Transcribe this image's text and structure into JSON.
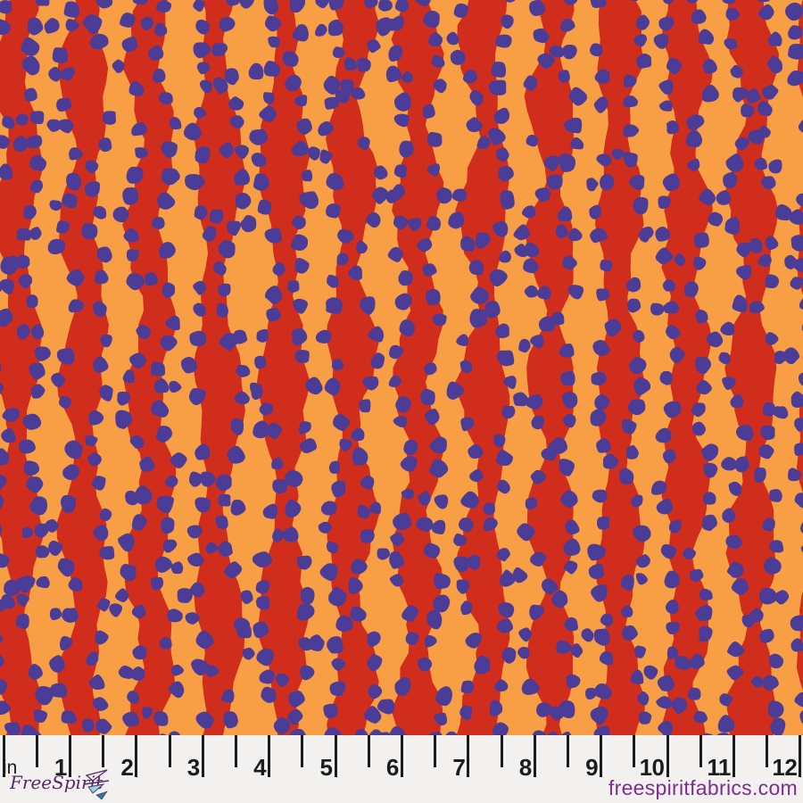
{
  "pattern": {
    "description": "fabric swatch: wavy vertical stripes with hand-painted dots",
    "colors": {
      "stripe_red": "#d02d1d",
      "stripe_orange": "#f89e44",
      "dot_indigo": "#4b3c97"
    }
  },
  "ruler": {
    "unit_label": "in",
    "numbers": [
      "1",
      "2",
      "3",
      "4",
      "5",
      "6",
      "7",
      "8",
      "9",
      "10",
      "11",
      "12"
    ],
    "tick_color": "#1c1c1c",
    "background": "#f2f1ef"
  },
  "footer": {
    "logo_text": "FreeSpirit",
    "logo_color": "#5b2767",
    "logo_teal": "#8ed4de",
    "logo_dark_teal": "#2e7a96",
    "website": "freespiritfabrics.com",
    "website_color": "#7b2f8f"
  }
}
